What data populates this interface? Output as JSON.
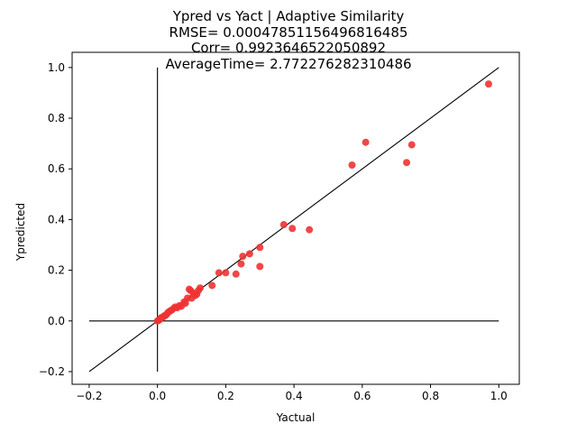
{
  "chart_data": {
    "type": "scatter",
    "title_lines": [
      "Ypred vs Yact | Adaptive Similarity",
      "RMSE= 0.00047851156496816485",
      "Corr= 0.9923646522050892",
      "AverageTime= 2.772276282310486"
    ],
    "xlabel": "Yactual",
    "ylabel": "Ypredicted",
    "xlim": [
      -0.25,
      1.06
    ],
    "ylim": [
      -0.25,
      1.06
    ],
    "x_ticks": [
      -0.2,
      0.0,
      0.2,
      0.4,
      0.6,
      0.8,
      1.0
    ],
    "x_tick_labels": [
      "−0.2",
      "0.0",
      "0.2",
      "0.4",
      "0.6",
      "0.8",
      "1.0"
    ],
    "y_ticks": [
      -0.2,
      0.0,
      0.2,
      0.4,
      0.6,
      0.8,
      1.0
    ],
    "y_tick_labels": [
      "−0.2",
      "0.0",
      "0.2",
      "0.4",
      "0.6",
      "0.8",
      "1.0"
    ],
    "grid": false,
    "point_color": "#ee3333",
    "reference_lines": [
      {
        "kind": "identity",
        "from": [
          -0.2,
          -0.2
        ],
        "to": [
          1.0,
          1.0
        ]
      },
      {
        "kind": "horizontal",
        "from": [
          -0.2,
          0.0
        ],
        "to": [
          1.0,
          0.0
        ]
      },
      {
        "kind": "vertical",
        "from": [
          0.0,
          -0.2
        ],
        "to": [
          0.0,
          1.0
        ]
      }
    ],
    "points": [
      [
        0.0,
        0.0
      ],
      [
        0.003,
        0.002
      ],
      [
        0.006,
        0.005
      ],
      [
        0.009,
        0.01
      ],
      [
        0.012,
        0.013
      ],
      [
        0.016,
        0.015
      ],
      [
        0.02,
        0.02
      ],
      [
        0.024,
        0.022
      ],
      [
        0.028,
        0.028
      ],
      [
        0.032,
        0.035
      ],
      [
        0.038,
        0.04
      ],
      [
        0.042,
        0.043
      ],
      [
        0.048,
        0.05
      ],
      [
        0.052,
        0.055
      ],
      [
        0.058,
        0.052
      ],
      [
        0.064,
        0.06
      ],
      [
        0.07,
        0.058
      ],
      [
        0.078,
        0.075
      ],
      [
        0.082,
        0.07
      ],
      [
        0.088,
        0.09
      ],
      [
        0.093,
        0.125
      ],
      [
        0.097,
        0.12
      ],
      [
        0.1,
        0.09
      ],
      [
        0.105,
        0.11
      ],
      [
        0.11,
        0.1
      ],
      [
        0.115,
        0.105
      ],
      [
        0.12,
        0.12
      ],
      [
        0.125,
        0.13
      ],
      [
        0.16,
        0.14
      ],
      [
        0.18,
        0.19
      ],
      [
        0.2,
        0.19
      ],
      [
        0.23,
        0.185
      ],
      [
        0.245,
        0.225
      ],
      [
        0.25,
        0.255
      ],
      [
        0.27,
        0.265
      ],
      [
        0.3,
        0.29
      ],
      [
        0.3,
        0.215
      ],
      [
        0.37,
        0.38
      ],
      [
        0.395,
        0.365
      ],
      [
        0.445,
        0.36
      ],
      [
        0.57,
        0.615
      ],
      [
        0.61,
        0.705
      ],
      [
        0.73,
        0.625
      ],
      [
        0.745,
        0.695
      ],
      [
        0.97,
        0.935
      ]
    ]
  }
}
